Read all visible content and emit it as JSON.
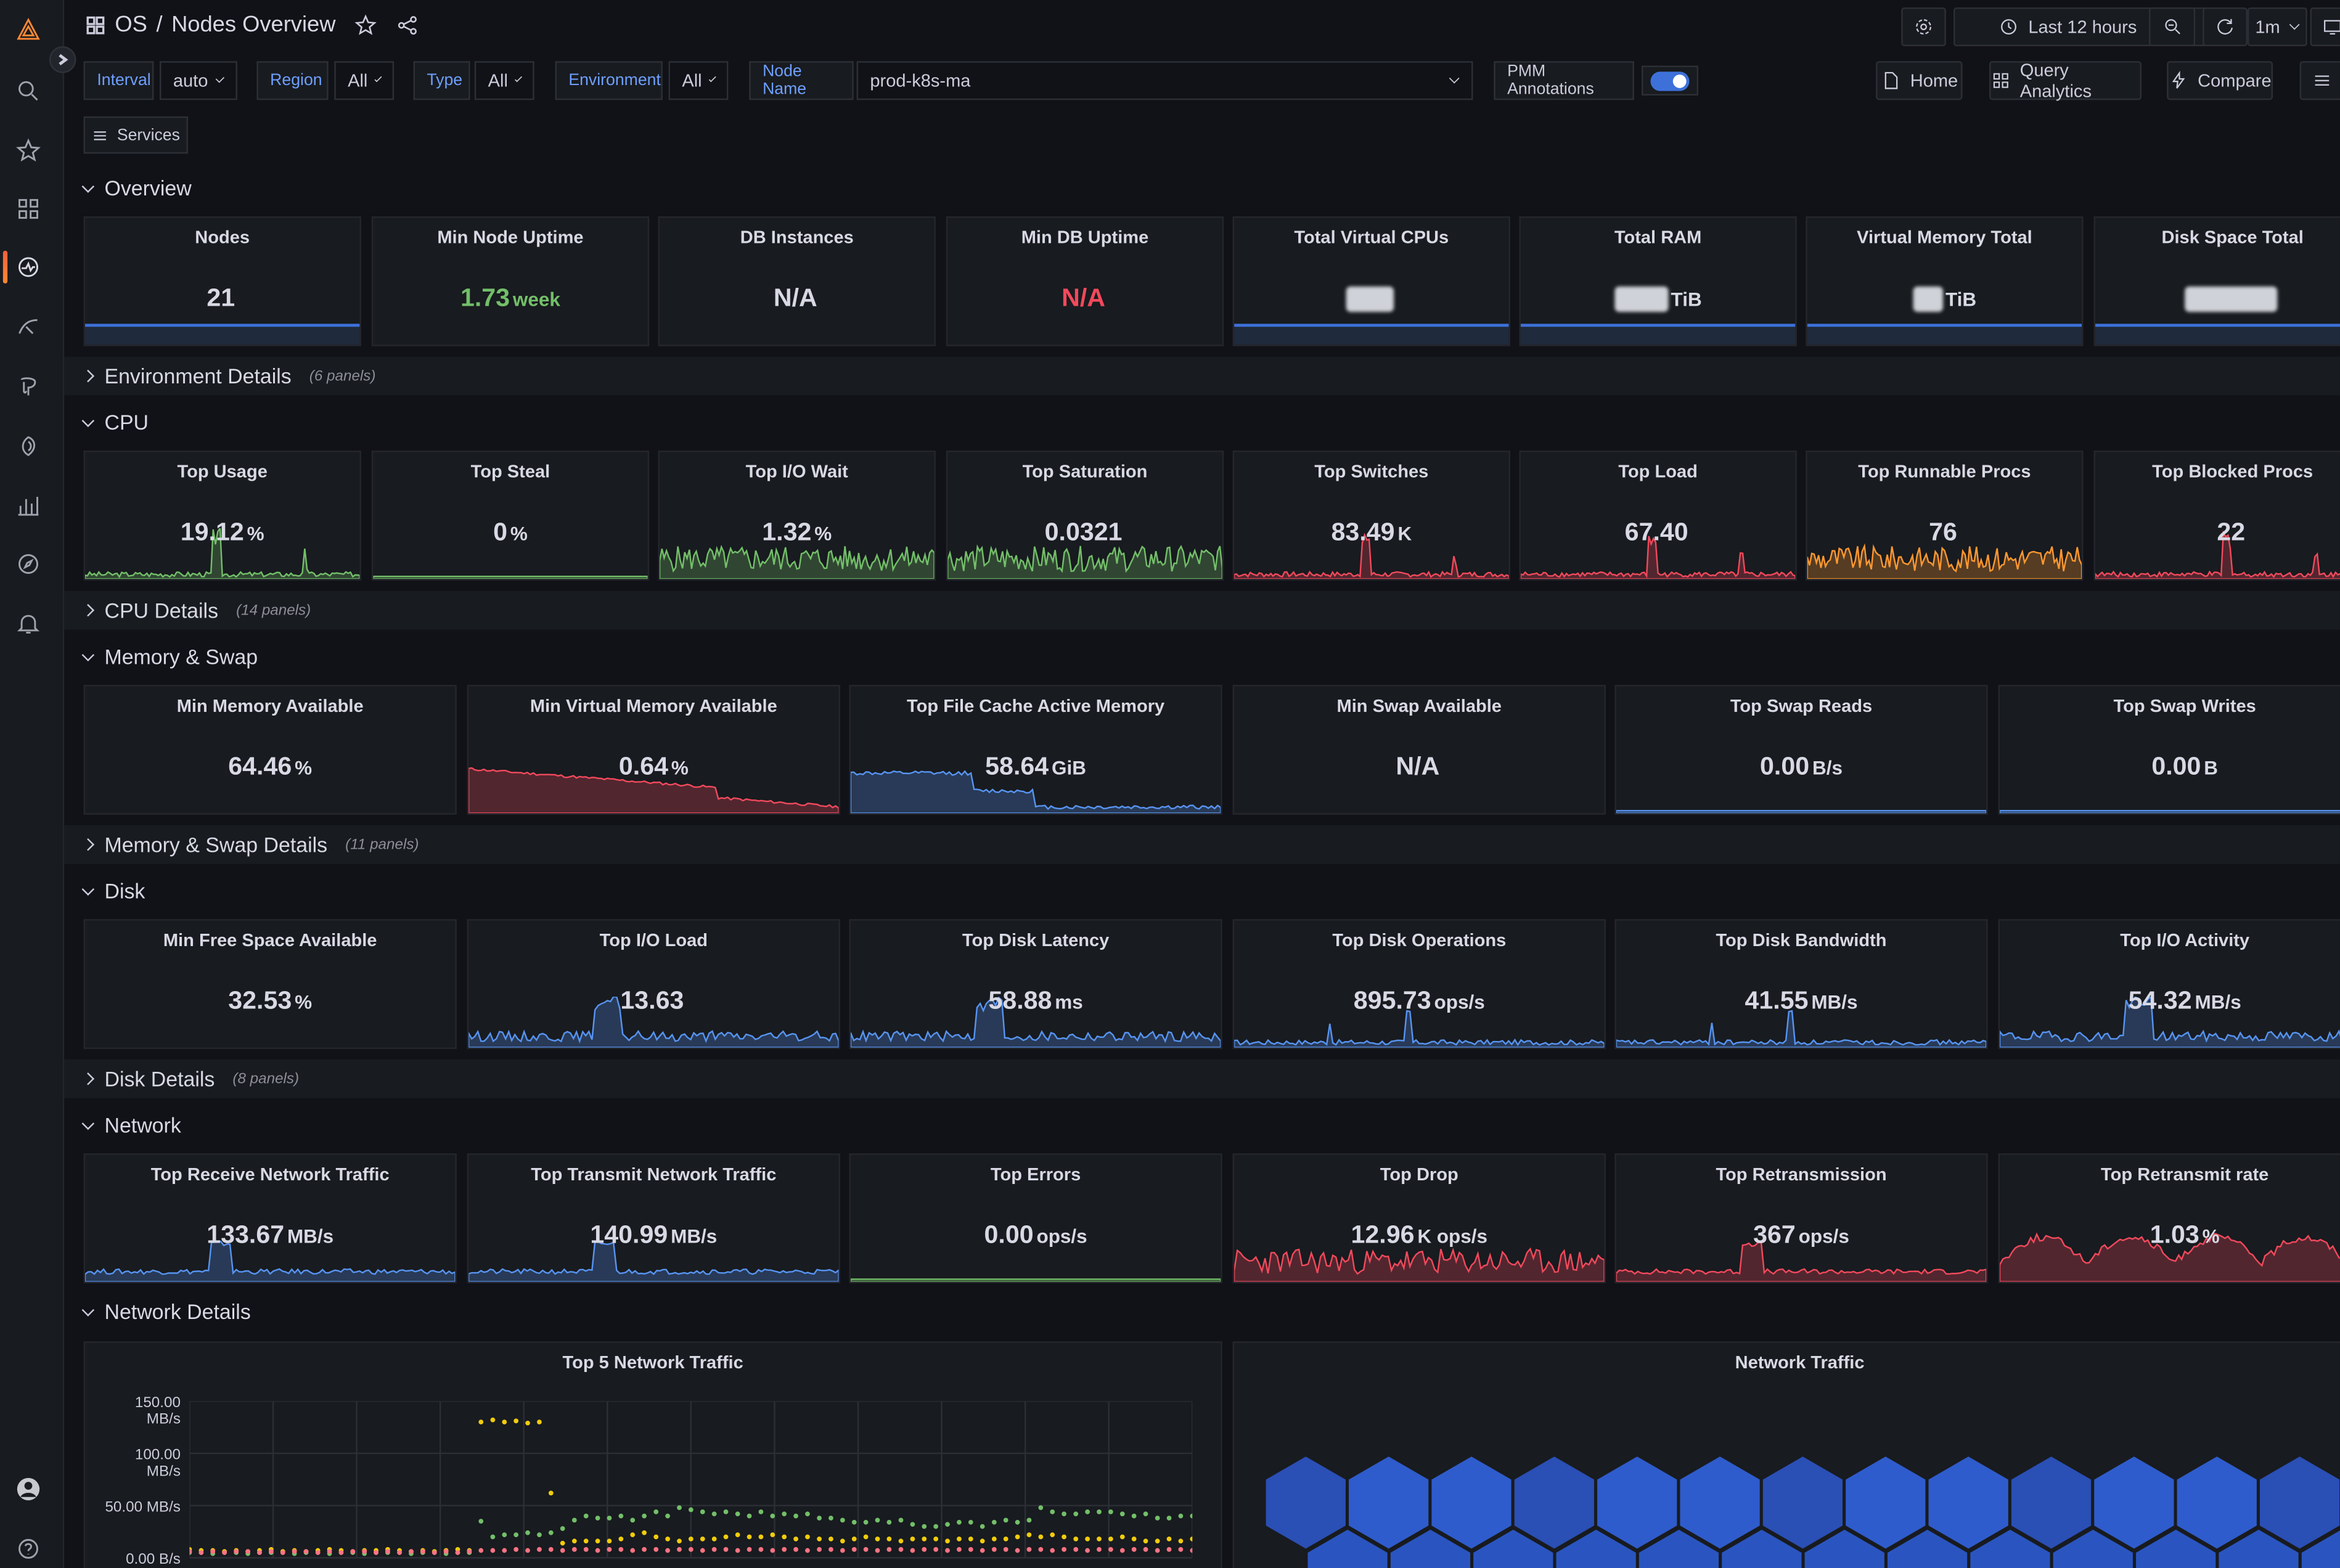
{
  "header": {
    "folder": "OS",
    "separator": "/",
    "title": "Nodes Overview",
    "time_range": "Last 12 hours",
    "refresh": "1m"
  },
  "variables": {
    "interval": {
      "label": "Interval",
      "value": "auto"
    },
    "region": {
      "label": "Region",
      "value": "All"
    },
    "type": {
      "label": "Type",
      "value": "All"
    },
    "environment": {
      "label": "Environment",
      "value": "All"
    },
    "node_name": {
      "label": "Node Name",
      "value": "prod-k8s-ma"
    },
    "annotations": {
      "label": "PMM Annotations",
      "enabled": true
    }
  },
  "links": {
    "home": "Home",
    "query_analytics": "Query Analytics",
    "compare": "Compare",
    "services": "Services"
  },
  "rows": {
    "overview": "Overview",
    "env_details": {
      "title": "Environment Details",
      "count": "(6 panels)"
    },
    "cpu": "CPU",
    "cpu_details": {
      "title": "CPU Details",
      "count": "(14 panels)"
    },
    "memory": "Memory & Swap",
    "memory_details": {
      "title": "Memory & Swap Details",
      "count": "(11 panels)"
    },
    "disk": "Disk",
    "disk_details": {
      "title": "Disk Details",
      "count": "(8 panels)"
    },
    "network": "Network",
    "network_details": "Network Details"
  },
  "overview_panels": [
    {
      "title": "Nodes",
      "value": "21",
      "unit": ""
    },
    {
      "title": "Min Node Uptime",
      "value": "1.73",
      "unit": "week"
    },
    {
      "title": "DB Instances",
      "value": "N/A",
      "unit": ""
    },
    {
      "title": "Min DB Uptime",
      "value": "N/A",
      "unit": ""
    },
    {
      "title": "Total Virtual CPUs",
      "value": "",
      "unit": ""
    },
    {
      "title": "Total RAM",
      "value": "",
      "unit": "TiB"
    },
    {
      "title": "Virtual Memory Total",
      "value": "",
      "unit": "TiB"
    },
    {
      "title": "Disk Space Total",
      "value": "",
      "unit": ""
    }
  ],
  "cpu_panels": [
    {
      "title": "Top Usage",
      "value": "19.12",
      "unit": "%"
    },
    {
      "title": "Top Steal",
      "value": "0",
      "unit": "%"
    },
    {
      "title": "Top I/O Wait",
      "value": "1.32",
      "unit": "%"
    },
    {
      "title": "Top Saturation",
      "value": "0.0321",
      "unit": ""
    },
    {
      "title": "Top Switches",
      "value": "83.49",
      "unit": "K"
    },
    {
      "title": "Top Load",
      "value": "67.40",
      "unit": ""
    },
    {
      "title": "Top Runnable Procs",
      "value": "76",
      "unit": ""
    },
    {
      "title": "Top Blocked Procs",
      "value": "22",
      "unit": ""
    }
  ],
  "memory_panels": [
    {
      "title": "Min Memory Available",
      "value": "64.46",
      "unit": "%"
    },
    {
      "title": "Min Virtual Memory Available",
      "value": "0.64",
      "unit": "%"
    },
    {
      "title": "Top File Cache Active Memory",
      "value": "58.64",
      "unit": "GiB"
    },
    {
      "title": "Min Swap Available",
      "value": "N/A",
      "unit": ""
    },
    {
      "title": "Top Swap Reads",
      "value": "0.00",
      "unit": "B/s"
    },
    {
      "title": "Top Swap Writes",
      "value": "0.00",
      "unit": "B"
    }
  ],
  "disk_panels": [
    {
      "title": "Min Free Space Available",
      "value": "32.53",
      "unit": "%"
    },
    {
      "title": "Top I/O Load",
      "value": "13.63",
      "unit": ""
    },
    {
      "title": "Top Disk Latency",
      "value": "58.88",
      "unit": "ms"
    },
    {
      "title": "Top Disk Operations",
      "value": "895.73",
      "unit": "ops/s"
    },
    {
      "title": "Top Disk Bandwidth",
      "value": "41.55",
      "unit": "MB/s"
    },
    {
      "title": "Top I/O Activity",
      "value": "54.32",
      "unit": "MB/s"
    }
  ],
  "network_panels": [
    {
      "title": "Top Receive Network Traffic",
      "value": "133.67",
      "unit": "MB/s"
    },
    {
      "title": "Top Transmit Network Traffic",
      "value": "140.99",
      "unit": "MB/s"
    },
    {
      "title": "Top Errors",
      "value": "0.00",
      "unit": "ops/s"
    },
    {
      "title": "Top Drop",
      "value": "12.96",
      "unit": "K ops/s"
    },
    {
      "title": "Top Retransmission",
      "value": "367",
      "unit": "ops/s"
    },
    {
      "title": "Top Retransmit rate",
      "value": "1.03",
      "unit": "%"
    }
  ],
  "top5": {
    "title": "Top 5 Network Traffic",
    "yticks": [
      "150.00 MB/s",
      "100.00 MB/s",
      "50.00 MB/s",
      "0.00 B/s"
    ]
  },
  "network_traffic": {
    "title": "Network Traffic"
  },
  "chart_data": {
    "type": "scatter",
    "title": "Top 5 Network Traffic",
    "ylim": [
      0,
      150
    ],
    "yticks": [
      "150.00 MB/s",
      "100.00 MB/s",
      "50.00 MB/s",
      "0.00 B/s"
    ],
    "series": [
      {
        "name": "",
        "color": "#f2cc0c",
        "values": [
          8,
          7,
          7,
          6,
          7,
          6,
          7,
          8,
          6,
          7,
          6,
          7,
          8,
          7,
          6,
          7,
          7,
          8,
          7,
          6,
          7,
          6,
          7,
          8,
          7,
          130,
          132,
          130,
          131,
          129,
          130,
          62,
          14,
          16,
          16,
          16,
          16,
          18,
          22,
          24,
          20,
          18,
          16,
          18,
          18,
          18,
          20,
          22,
          20,
          20,
          22,
          20,
          18,
          20,
          18,
          18,
          16,
          18,
          20,
          18,
          18,
          16,
          18,
          18,
          18,
          16,
          18,
          18,
          16,
          18,
          18,
          20,
          22,
          20,
          22,
          20,
          18,
          18,
          18,
          18,
          20,
          18,
          16,
          16,
          18,
          16,
          18
        ]
      },
      {
        "name": "",
        "color": "#73bf69",
        "values": [
          5,
          5,
          4,
          5,
          5,
          4,
          5,
          5,
          5,
          4,
          5,
          5,
          4,
          5,
          5,
          4,
          5,
          5,
          5,
          4,
          5,
          5,
          4,
          5,
          5,
          35,
          20,
          22,
          22,
          24,
          22,
          24,
          28,
          36,
          40,
          38,
          38,
          40,
          36,
          40,
          44,
          40,
          48,
          46,
          44,
          42,
          44,
          42,
          40,
          44,
          40,
          42,
          40,
          42,
          38,
          38,
          36,
          34,
          34,
          36,
          34,
          36,
          32,
          30,
          30,
          32,
          34,
          34,
          30,
          34,
          36,
          34,
          36,
          48,
          44,
          42,
          42,
          44,
          44,
          44,
          42,
          40,
          42,
          38,
          38,
          40,
          40
        ]
      },
      {
        "name": "",
        "color": "#ff7383",
        "values": [
          6,
          5,
          6,
          5,
          6,
          6,
          5,
          6,
          5,
          6,
          6,
          5,
          6,
          5,
          6,
          6,
          5,
          6,
          5,
          6,
          6,
          5,
          6,
          5,
          6,
          7,
          7,
          7,
          8,
          7,
          8,
          8,
          7,
          8,
          8,
          7,
          8,
          8,
          7,
          8,
          8,
          7,
          8,
          8,
          7,
          8,
          8,
          7,
          8,
          8,
          7,
          8,
          8,
          7,
          8,
          8,
          7,
          8,
          8,
          7,
          8,
          8,
          7,
          8,
          8,
          7,
          8,
          8,
          7,
          8,
          8,
          7,
          8,
          8,
          7,
          8,
          8,
          7,
          8,
          8,
          7,
          8,
          8,
          7,
          8,
          8,
          7
        ]
      }
    ]
  }
}
